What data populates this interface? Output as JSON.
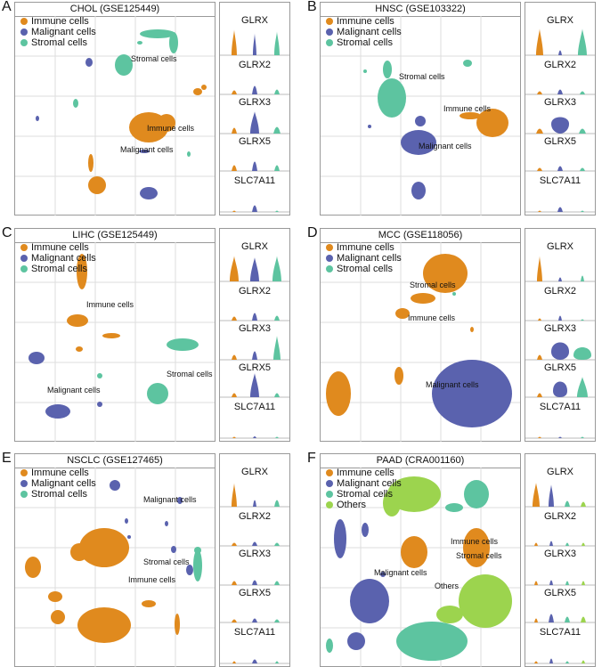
{
  "colors": {
    "immune": "#E08A1E",
    "malignant": "#5A62AE",
    "stromal": "#5DC4A0",
    "others": "#9CD44E"
  },
  "panels": [
    {
      "letter": "A",
      "title": "CHOL (GSE125449)",
      "legend": [
        "Immune cells",
        "Malignant cells",
        "Stromal cells"
      ],
      "cluster_labels": [
        "Stromal cells",
        "Immune cells",
        "Malignant cells"
      ],
      "genes": [
        "GLRX",
        "GLRX2",
        "GLRX3",
        "GLRX5",
        "SLC7A11"
      ]
    },
    {
      "letter": "B",
      "title": "HNSC (GSE103322)",
      "legend": [
        "Immune cells",
        "Malignant cells",
        "Stromal cells"
      ],
      "cluster_labels": [
        "Stromal cells",
        "Immune cells",
        "Malignant cells"
      ],
      "genes": [
        "GLRX",
        "GLRX2",
        "GLRX3",
        "GLRX5",
        "SLC7A11"
      ]
    },
    {
      "letter": "C",
      "title": "LIHC (GSE125449)",
      "legend": [
        "Immune cells",
        "Malignant cells",
        "Stromal cells"
      ],
      "cluster_labels": [
        "Immune cells",
        "Stromal cells",
        "Malignant cells"
      ],
      "genes": [
        "GLRX",
        "GLRX2",
        "GLRX3",
        "GLRX5",
        "SLC7A11"
      ]
    },
    {
      "letter": "D",
      "title": "MCC (GSE118056)",
      "legend": [
        "Immune cells",
        "Malignant cells",
        "Stromal cells"
      ],
      "cluster_labels": [
        "Stromal cells",
        "Immune cells",
        "Malignant cells"
      ],
      "genes": [
        "GLRX",
        "GLRX2",
        "GLRX3",
        "GLRX5",
        "SLC7A11"
      ]
    },
    {
      "letter": "E",
      "title": "NSCLC (GSE127465)",
      "legend": [
        "Immune cells",
        "Malignant cells",
        "Stromal cells"
      ],
      "cluster_labels": [
        "Malignant cells",
        "Stromal cells",
        "Immune cells"
      ],
      "genes": [
        "GLRX",
        "GLRX2",
        "GLRX3",
        "GLRX5",
        "SLC7A11"
      ]
    },
    {
      "letter": "F",
      "title": "PAAD (CRA001160)",
      "legend": [
        "Immune cells",
        "Malignant cells",
        "Stromal cells",
        "Others"
      ],
      "cluster_labels": [
        "Immune cells",
        "Stromal cells",
        "Malignant cells",
        "Others"
      ],
      "genes": [
        "GLRX",
        "GLRX2",
        "GLRX3",
        "GLRX5",
        "SLC7A11"
      ]
    }
  ]
}
